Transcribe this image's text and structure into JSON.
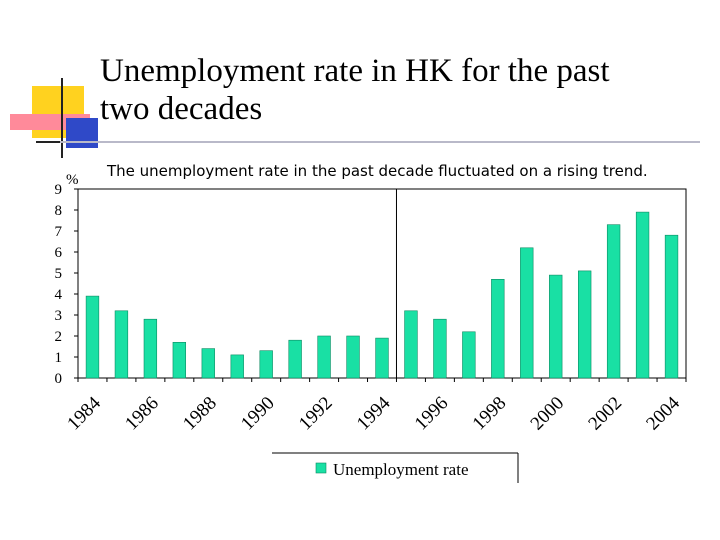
{
  "slide": {
    "title_line1": "Unemployment rate in HK for the past",
    "title_line2": "two decades",
    "note": "The unemployment rate in the past decade fluctuated on a rising trend."
  },
  "colors": {
    "bar": "#19e0a4",
    "bar_edge": "#0b8a62",
    "deco_yellow": "#ffd21f",
    "deco_red": "#ff3b3b",
    "deco_blue": "#2f49c8",
    "deco_pink": "#ff8a9a"
  },
  "chart_data": {
    "type": "bar",
    "title": "",
    "ylabel": "%",
    "xlabel": "",
    "ylim": [
      0,
      9
    ],
    "yticks": [
      0,
      1,
      2,
      3,
      4,
      5,
      6,
      7,
      8,
      9
    ],
    "xtick_labels": [
      "1984",
      "1986",
      "1988",
      "1990",
      "1992",
      "1994",
      "1996",
      "1998",
      "2000",
      "2002",
      "2004"
    ],
    "categories": [
      "1984",
      "1985",
      "1986",
      "1987",
      "1988",
      "1989",
      "1990",
      "1991",
      "1992",
      "1993",
      "1994",
      "1995",
      "1996",
      "1997",
      "1998",
      "1999",
      "2000",
      "2001",
      "2002",
      "2003",
      "2004"
    ],
    "series": [
      {
        "name": "Unemployment rate",
        "values": [
          3.9,
          3.2,
          2.8,
          1.7,
          1.4,
          1.1,
          1.3,
          1.8,
          2.0,
          2.0,
          1.9,
          3.2,
          2.8,
          2.2,
          4.7,
          6.2,
          4.9,
          5.1,
          7.3,
          7.9,
          6.8
        ]
      }
    ],
    "grid": false,
    "legend_position": "bottom"
  }
}
